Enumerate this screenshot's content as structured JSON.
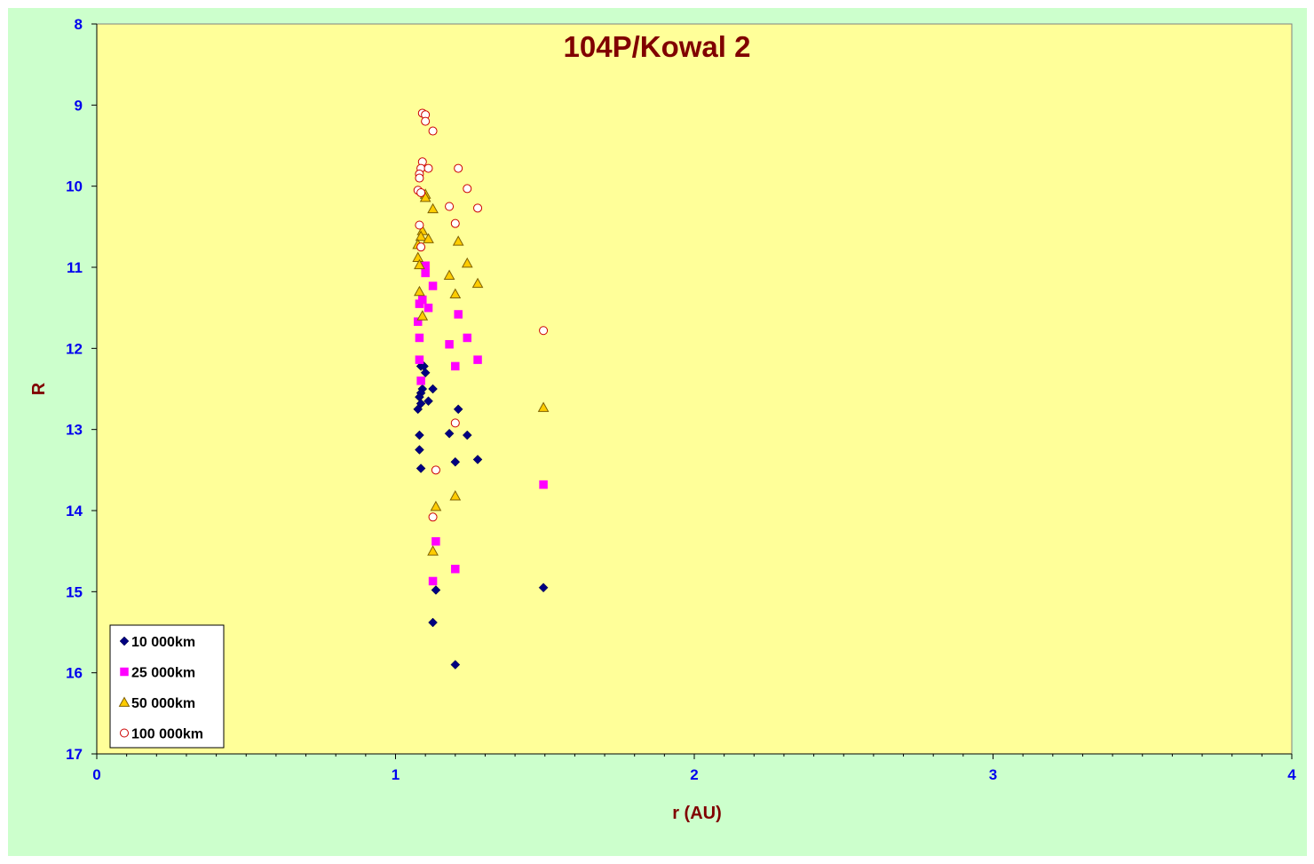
{
  "chart_data": {
    "type": "scatter",
    "title": "104P/Kowal 2",
    "xlabel": "r (AU)",
    "ylabel": "R",
    "xlim": [
      0,
      4
    ],
    "ylim": [
      8,
      17
    ],
    "y_inverted": true,
    "x_ticks": [
      "0",
      "1",
      "2",
      "3",
      "4"
    ],
    "y_ticks": [
      "8",
      "9",
      "10",
      "11",
      "12",
      "13",
      "14",
      "15",
      "16",
      "17"
    ],
    "grid": false,
    "legend_position": "bottom-left",
    "colors": {
      "outer_background": "#ccffcc",
      "plot_background": "#ffff99",
      "title": "#800000",
      "tick_labels": "#0000ee"
    },
    "series": [
      {
        "name": "10 000km",
        "marker": "diamond",
        "color": "#000080",
        "points": [
          [
            1.085,
            12.22
          ],
          [
            1.095,
            12.22
          ],
          [
            1.1,
            12.3
          ],
          [
            1.09,
            12.5
          ],
          [
            1.085,
            12.55
          ],
          [
            1.08,
            12.6
          ],
          [
            1.085,
            12.68
          ],
          [
            1.075,
            12.75
          ],
          [
            1.11,
            12.65
          ],
          [
            1.125,
            12.5
          ],
          [
            1.21,
            12.75
          ],
          [
            1.18,
            13.05
          ],
          [
            1.24,
            13.07
          ],
          [
            1.08,
            13.07
          ],
          [
            1.08,
            13.25
          ],
          [
            1.085,
            13.48
          ],
          [
            1.2,
            13.4
          ],
          [
            1.275,
            13.37
          ],
          [
            1.135,
            14.98
          ],
          [
            1.125,
            15.38
          ],
          [
            1.2,
            15.9
          ],
          [
            1.495,
            14.95
          ]
        ]
      },
      {
        "name": "25 000km",
        "marker": "square",
        "color": "#ff00ff",
        "points": [
          [
            1.1,
            10.98
          ],
          [
            1.1,
            11.07
          ],
          [
            1.125,
            11.23
          ],
          [
            1.09,
            11.4
          ],
          [
            1.08,
            11.45
          ],
          [
            1.11,
            11.5
          ],
          [
            1.075,
            11.67
          ],
          [
            1.08,
            11.87
          ],
          [
            1.21,
            11.58
          ],
          [
            1.18,
            11.95
          ],
          [
            1.24,
            11.87
          ],
          [
            1.275,
            12.14
          ],
          [
            1.2,
            12.22
          ],
          [
            1.08,
            12.14
          ],
          [
            1.085,
            12.4
          ],
          [
            1.135,
            14.38
          ],
          [
            1.2,
            14.72
          ],
          [
            1.125,
            14.87
          ],
          [
            1.495,
            13.68
          ]
        ]
      },
      {
        "name": "50 000km",
        "marker": "triangle",
        "color": "#ffcc00",
        "points": [
          [
            1.1,
            10.1
          ],
          [
            1.1,
            10.14
          ],
          [
            1.125,
            10.28
          ],
          [
            1.09,
            10.55
          ],
          [
            1.085,
            10.62
          ],
          [
            1.11,
            10.65
          ],
          [
            1.075,
            10.72
          ],
          [
            1.075,
            10.88
          ],
          [
            1.08,
            10.97
          ],
          [
            1.21,
            10.68
          ],
          [
            1.18,
            11.1
          ],
          [
            1.24,
            10.95
          ],
          [
            1.275,
            11.2
          ],
          [
            1.2,
            11.33
          ],
          [
            1.08,
            11.3
          ],
          [
            1.09,
            11.6
          ],
          [
            1.135,
            13.95
          ],
          [
            1.2,
            13.82
          ],
          [
            1.125,
            14.5
          ],
          [
            1.495,
            12.73
          ]
        ]
      },
      {
        "name": "100 000km",
        "marker": "circle",
        "color": "#cc0000",
        "points": [
          [
            1.09,
            9.1
          ],
          [
            1.1,
            9.12
          ],
          [
            1.1,
            9.2
          ],
          [
            1.125,
            9.32
          ],
          [
            1.09,
            9.7
          ],
          [
            1.085,
            9.78
          ],
          [
            1.11,
            9.78
          ],
          [
            1.08,
            9.85
          ],
          [
            1.08,
            9.9
          ],
          [
            1.075,
            10.05
          ],
          [
            1.085,
            10.08
          ],
          [
            1.21,
            9.78
          ],
          [
            1.24,
            10.03
          ],
          [
            1.18,
            10.25
          ],
          [
            1.275,
            10.27
          ],
          [
            1.2,
            10.46
          ],
          [
            1.08,
            10.48
          ],
          [
            1.085,
            10.75
          ],
          [
            1.2,
            12.92
          ],
          [
            1.135,
            13.5
          ],
          [
            1.125,
            14.08
          ],
          [
            1.495,
            11.78
          ]
        ]
      }
    ]
  }
}
